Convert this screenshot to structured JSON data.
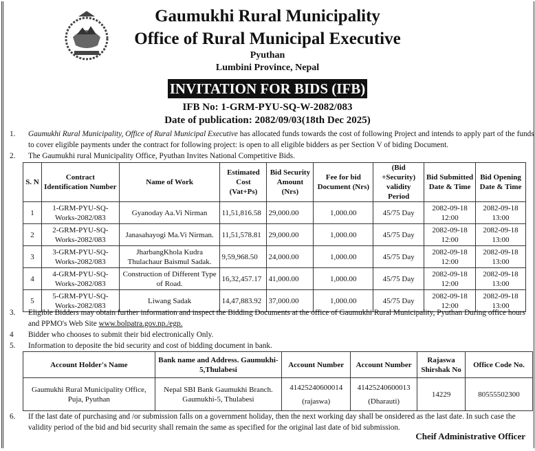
{
  "header": {
    "title": "Gaumukhi Rural Municipality",
    "subtitle": "Office of Rural Municipal Executive",
    "district": "Pyuthan",
    "province": "Lumbini Province, Nepal",
    "banner": "INVITATION FOR BIDS (IFB)",
    "ifb_no": "IFB No: 1-GRM-PYU-SQ-W-2082/083",
    "publication_date": "Date of publication: 2082/09/03(18th Dec 2025)"
  },
  "para1": {
    "n": "1.",
    "italic": "Gaumukhi Rural Municipality, Office of Rural Municipal Executive",
    "text": " has allocated funds towards the cost of following Project and intends to apply part of the funds to cover eligible payments under the contract for following project: is open to all eligible bidders as per Section V of biding Document."
  },
  "para2": {
    "n": "2.",
    "text": "The Gaumukhi rural Municipality Office, Pyuthan Invites National Competitive Bids."
  },
  "bids_table": {
    "headers": [
      "S. N",
      "Contract Identification Number",
      "Name of Work",
      "Estimated Cost (Vat+Ps)",
      "Bid Security Amount (Nrs)",
      "Fee for bid Document (Nrs)",
      "(Bid +Security) validity Period",
      "Bid Submitted Date & Time",
      "Bid Opening Date & Time"
    ],
    "rows": [
      [
        "1",
        "1-GRM-PYU-SQ-Works-2082/083",
        "Gyanoday Aa.Vi Nirman",
        "11,51,816.58",
        "29,000.00",
        "1,000.00",
        "45/75 Day",
        "2082-09-18 12:00",
        "2082-09-18 13:00"
      ],
      [
        "2",
        "2-GRM-PYU-SQ-Works-2082/083",
        "Janasahayogi Ma.Vi Nirman.",
        "11,51,578.81",
        "29,000.00",
        "1,000.00",
        "45/75 Day",
        "2082-09-18 12:00",
        "2082-09-18 13:00"
      ],
      [
        "3",
        "3-GRM-PYU-SQ-Works-2082/083",
        "JharbangKhola Kudra Thulachaur Baismul Sadak.",
        "9,59,968.50",
        "24,000.00",
        "1,000.00",
        "45/75 Day",
        "2082-09-18 12:00",
        "2082-09-18 13:00"
      ],
      [
        "4",
        "4-GRM-PYU-SQ-Works-2082/083",
        "Construction of Different Type of Road.",
        "16,32,457.17",
        "41,000.00",
        "1,000.00",
        "45/75 Day",
        "2082-09-18 12:00",
        "2082-09-18 13:00"
      ],
      [
        "5",
        "5-GRM-PYU-SQ-Works-2082/083",
        "Liwang Sadak",
        "14,47,883.92",
        "37,000.00",
        "1,000.00",
        "45/75 Day",
        "2082-09-18 12:00",
        "2082-09-18 13:00"
      ]
    ]
  },
  "para3": {
    "n": "3.",
    "text": "Eligible Bidders may obtain further information and inspect the Bidding Documents at the office  of  Gaumukhi Rural Municipality, Pyuthan During office hours and PPMO's Web Site  ",
    "link": "www.bolpatra.gov.np./egp."
  },
  "para4": {
    "n": "4",
    "text": "Bidder  who chooses  to submit their bid electronically Only."
  },
  "para5": {
    "n": "5.",
    "text": "Information to deposite the bid security and cost of bidding document in bank."
  },
  "bank_table": {
    "headers": [
      "Account Holder's Name",
      "Bank name and Address. Gaumukhi-5,Thulabesi",
      "Account Number",
      "Account Number",
      "Rajaswa Shirshak No",
      "Office Code No."
    ],
    "row": [
      "Gaumukhi Rural Municipality Office, Puja, Pyuthan",
      "Nepal SBI Bank Gaumukhi Branch. Gaumukhi-5, Thulabesi",
      "41425240600014",
      "(rajaswa)",
      "41425240600013",
      "(Dharauti)",
      "14229",
      "80555502300"
    ]
  },
  "para6": {
    "n": "6.",
    "text": "If the last date of purchasing and /or submission falls on a government holiday, then the next working day shall be onsidered as the last date. In such case the validity period of the bid and bid security shall remain the same as specified for the original last date of bid submission."
  },
  "signature": "Cheif Administrative Officer"
}
